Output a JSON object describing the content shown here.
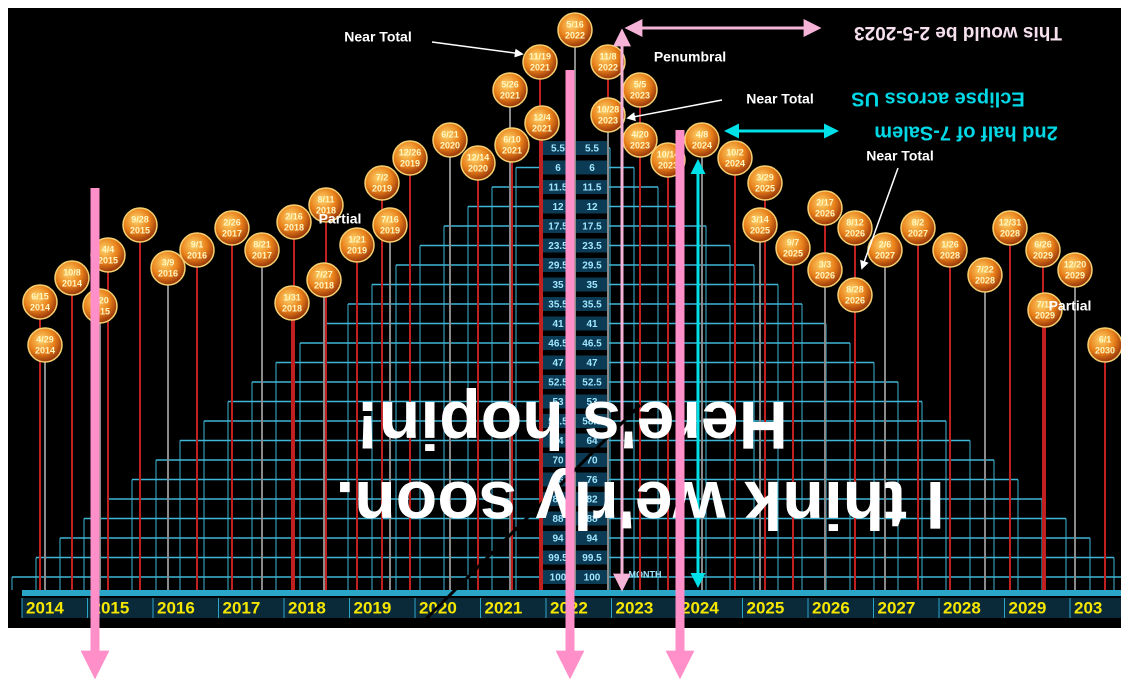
{
  "eclipses": [
    {
      "date": "4/29",
      "year": "2014"
    },
    {
      "date": "6/15",
      "year": "2014"
    },
    {
      "date": "10/8",
      "year": "2014"
    },
    {
      "date": "3/20",
      "year": "2015"
    },
    {
      "date": "4/4",
      "year": "2015"
    },
    {
      "date": "9/28",
      "year": "2015"
    },
    {
      "date": "3/9",
      "year": "2016"
    },
    {
      "date": "9/1",
      "year": "2016"
    },
    {
      "date": "2/26",
      "year": "2017"
    },
    {
      "date": "8/21",
      "year": "2017"
    },
    {
      "date": "2/16",
      "year": "2018"
    },
    {
      "date": "1/31",
      "year": "2018"
    },
    {
      "date": "7/27",
      "year": "2018"
    },
    {
      "date": "8/11",
      "year": "2018"
    },
    {
      "date": "1/21",
      "year": "2019"
    },
    {
      "date": "7/16",
      "year": "2019"
    },
    {
      "date": "7/2",
      "year": "2019"
    },
    {
      "date": "12/26",
      "year": "2019"
    },
    {
      "date": "6/21",
      "year": "2020"
    },
    {
      "date": "12/14",
      "year": "2020"
    },
    {
      "date": "6/10",
      "year": "2021"
    },
    {
      "date": "5/26",
      "year": "2021"
    },
    {
      "date": "12/4",
      "year": "2021"
    },
    {
      "date": "11/19",
      "year": "2021"
    },
    {
      "date": "5/16",
      "year": "2022"
    },
    {
      "date": "11/8",
      "year": "2022"
    },
    {
      "date": "5/5",
      "year": "2023"
    },
    {
      "date": "10/28",
      "year": "2023"
    },
    {
      "date": "4/20",
      "year": "2023"
    },
    {
      "date": "10/14",
      "year": "2023"
    },
    {
      "date": "4/8",
      "year": "2024"
    },
    {
      "date": "10/2",
      "year": "2024"
    },
    {
      "date": "3/29",
      "year": "2025"
    },
    {
      "date": "3/14",
      "year": "2025"
    },
    {
      "date": "9/7",
      "year": "2025"
    },
    {
      "date": "2/17",
      "year": "2026"
    },
    {
      "date": "3/3",
      "year": "2026"
    },
    {
      "date": "8/12",
      "year": "2026"
    },
    {
      "date": "8/28",
      "year": "2026"
    },
    {
      "date": "2/6",
      "year": "2027"
    },
    {
      "date": "8/2",
      "year": "2027"
    },
    {
      "date": "1/26",
      "year": "2028"
    },
    {
      "date": "7/22",
      "year": "2028"
    },
    {
      "date": "12/31",
      "year": "2028"
    },
    {
      "date": "6/26",
      "year": "2029"
    },
    {
      "date": "12/20",
      "year": "2029"
    },
    {
      "date": "7/11",
      "year": "2029"
    },
    {
      "date": "6/1",
      "year": "2030"
    }
  ],
  "ladder": [
    5.5,
    6,
    11.5,
    12,
    17.5,
    23.5,
    29.5,
    35,
    35.5,
    41,
    46.5,
    47,
    52.5,
    53,
    58.5,
    64,
    70,
    76,
    82,
    88,
    94,
    99.5,
    100
  ],
  "month_label": "MONTH",
  "timeline_years": [
    "2014",
    "2015",
    "2016",
    "2017",
    "2018",
    "2019",
    "2020",
    "2021",
    "2022",
    "2023",
    "2024",
    "2025",
    "2026",
    "2027",
    "2028",
    "2029",
    "203"
  ],
  "callouts": [
    "Near Total",
    "Penumbral",
    "Near Total",
    "Near Total",
    "Partial",
    "Partial"
  ],
  "flipped_notes": [
    "This would be 2-5-2023",
    "Eclipse across US",
    "2nd half of 7-Salem"
  ],
  "overlay_text": [
    "Here's hopin!",
    "I think we'rly soon."
  ]
}
